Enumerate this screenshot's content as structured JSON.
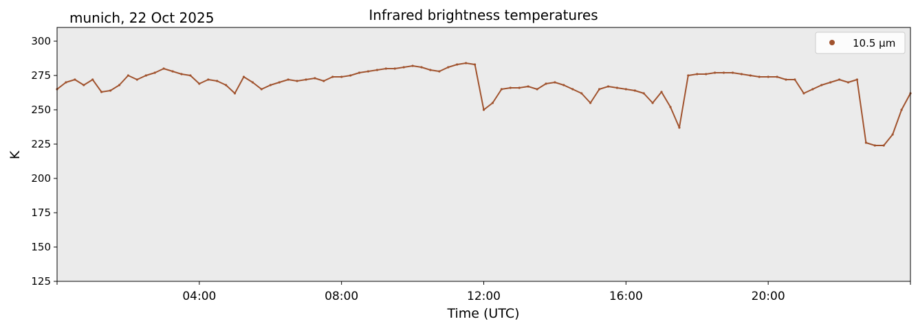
{
  "location_date": "munich, 22 Oct 2025",
  "chart_data": {
    "type": "scatter",
    "title": "Infrared brightness temperatures",
    "xlabel": "Time (UTC)",
    "ylabel": "K",
    "xlim": [
      "00:00",
      "24:00"
    ],
    "ylim": [
      125,
      310
    ],
    "x_ticks": [
      "04:00",
      "08:00",
      "12:00",
      "16:00",
      "20:00"
    ],
    "y_ticks": [
      125,
      150,
      175,
      200,
      225,
      250,
      275,
      300
    ],
    "grid": false,
    "background_color": "#ebebeb",
    "legend": {
      "placement": "top-right"
    },
    "series": [
      {
        "name": "10.5 µm",
        "color": "#a0522d",
        "x_unit": "hours UTC",
        "x": [
          0.0,
          0.25,
          0.5,
          0.75,
          1.0,
          1.25,
          1.5,
          1.75,
          2.0,
          2.25,
          2.5,
          2.75,
          3.0,
          3.25,
          3.5,
          3.75,
          4.0,
          4.25,
          4.5,
          4.75,
          5.0,
          5.25,
          5.5,
          5.75,
          6.0,
          6.25,
          6.5,
          6.75,
          7.0,
          7.25,
          7.5,
          7.75,
          8.0,
          8.25,
          8.5,
          8.75,
          9.0,
          9.25,
          9.5,
          9.75,
          10.0,
          10.25,
          10.5,
          10.75,
          11.0,
          11.25,
          11.5,
          11.75,
          12.0,
          12.25,
          12.5,
          12.75,
          13.0,
          13.25,
          13.5,
          13.75,
          14.0,
          14.25,
          14.5,
          14.75,
          15.0,
          15.25,
          15.5,
          15.75,
          16.0,
          16.25,
          16.5,
          16.75,
          17.0,
          17.25,
          17.5,
          17.75,
          18.0,
          18.25,
          18.5,
          18.75,
          19.0,
          19.25,
          19.5,
          19.75,
          20.0,
          20.25,
          20.5,
          20.75,
          21.0,
          21.25,
          21.5,
          21.75,
          22.0,
          22.25,
          22.5,
          22.75,
          23.0,
          23.25,
          23.5,
          23.75,
          24.0
        ],
        "y": [
          265,
          270,
          272,
          268,
          272,
          263,
          264,
          268,
          275,
          272,
          275,
          277,
          280,
          278,
          276,
          275,
          269,
          272,
          271,
          268,
          262,
          274,
          270,
          265,
          268,
          270,
          272,
          271,
          272,
          273,
          271,
          274,
          274,
          275,
          277,
          278,
          279,
          280,
          280,
          281,
          282,
          281,
          279,
          278,
          281,
          283,
          284,
          283,
          250,
          255,
          265,
          266,
          266,
          267,
          265,
          269,
          270,
          268,
          265,
          262,
          255,
          265,
          267,
          266,
          265,
          264,
          262,
          255,
          263,
          252,
          237,
          275,
          276,
          276,
          277,
          277,
          277,
          276,
          275,
          274,
          274,
          274,
          272,
          272,
          262,
          265,
          268,
          270,
          272,
          270,
          272,
          226,
          224,
          224,
          232,
          250,
          262
        ]
      }
    ]
  }
}
